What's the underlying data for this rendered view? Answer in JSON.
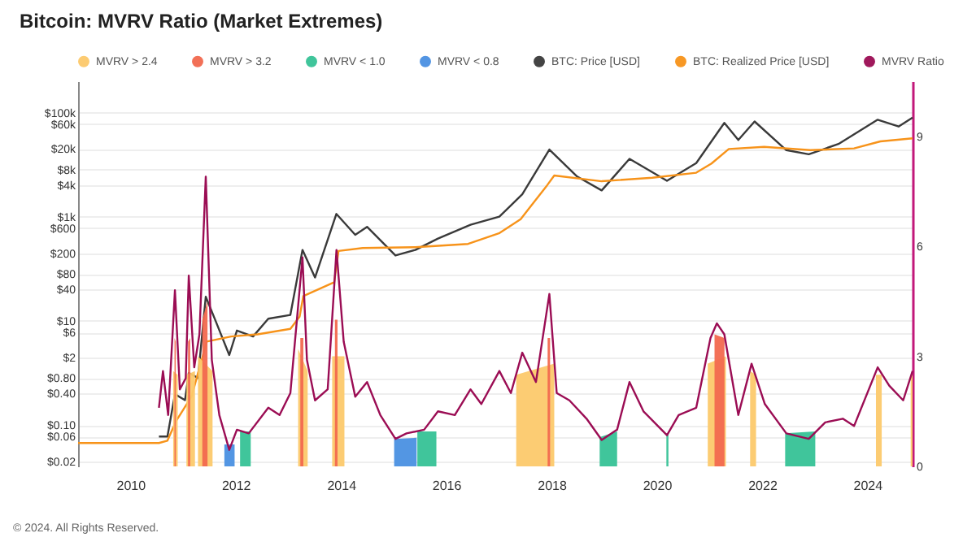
{
  "chart_data": {
    "type": "line",
    "title": "Bitcoin: MVRV Ratio (Market Extremes)",
    "annotations": [
      "© 2024. All Rights Reserved."
    ],
    "xlim": [
      "2009-01-03",
      "2024-11-10"
    ],
    "xticks": [
      "2010",
      "2012",
      "2014",
      "2016",
      "2018",
      "2020",
      "2022",
      "2024"
    ],
    "ylim": [
      0.016,
      400000
    ],
    "log": "y",
    "yticks": [
      {
        "value": 0.02,
        "label": "$0.02"
      },
      {
        "value": 0.06,
        "label": "$0.06"
      },
      {
        "value": 0.1,
        "label": "$0.10"
      },
      {
        "value": 0.4,
        "label": "$0.40"
      },
      {
        "value": 0.8,
        "label": "$0.80"
      },
      {
        "value": 2,
        "label": "$2"
      },
      {
        "value": 6,
        "label": "$6"
      },
      {
        "value": 10,
        "label": "$10"
      },
      {
        "value": 40,
        "label": "$40"
      },
      {
        "value": 80,
        "label": "$80"
      },
      {
        "value": 200,
        "label": "$200"
      },
      {
        "value": 600,
        "label": "$600"
      },
      {
        "value": 1000,
        "label": "$1k"
      },
      {
        "value": 4000,
        "label": "$4k"
      },
      {
        "value": 8000,
        "label": "$8k"
      },
      {
        "value": 20000,
        "label": "$20k"
      },
      {
        "value": 60000,
        "label": "$60k"
      },
      {
        "value": 100000,
        "label": "$100k"
      }
    ],
    "y2lim": [
      0,
      10.5
    ],
    "y2ticks": [
      0,
      3,
      6,
      9
    ],
    "grid": "y",
    "legend": "top left",
    "series": [
      {
        "name": "MVRV > 2.4",
        "type": "area",
        "axis": "y2",
        "color": "#fcc96b",
        "x": [
          "2010-10-25",
          "2010-11-25",
          "2010-12-01",
          "2011-01-25",
          "2011-03-25",
          "2011-04-01",
          "2011-04-15",
          "2011-07-25",
          "2011-08-01",
          "2013-03-10",
          "2013-05-15",
          "2013-06-01",
          "2013-11-01",
          "2014-01-25",
          "2014-02-10",
          "2017-05-01",
          "2018-01-20",
          "2018-03-01",
          "2020-12-20",
          "2021-04-25",
          "2021-06-01",
          "2021-10-10",
          "2021-11-20",
          "2021-12-10",
          "2024-03-01",
          "2024-04-10",
          "2024-07-01",
          "2024-10-28",
          "2024-11-10"
        ],
        "values": [
          2.6,
          2.5,
          null,
          2.5,
          2.6,
          null,
          3.0,
          2.6,
          null,
          3.2,
          2.6,
          null,
          3.0,
          3.0,
          null,
          2.5,
          2.8,
          null,
          2.8,
          3.0,
          null,
          2.6,
          2.5,
          null,
          2.5,
          2.5,
          null,
          2.5,
          2.6
        ]
      },
      {
        "name": "MVRV > 3.2",
        "type": "area",
        "axis": "y2",
        "color": "#f2694f",
        "x": [
          "2010-11-03",
          "2010-11-12",
          "2010-12-01",
          "2011-02-05",
          "2011-02-20",
          "2011-03-01",
          "2011-05-15",
          "2011-06-20",
          "2011-07-01",
          "2013-03-25",
          "2013-04-15",
          "2013-05-01",
          "2013-11-20",
          "2013-12-08",
          "2014-01-01",
          "2017-12-05",
          "2017-12-22",
          "2018-01-10",
          "2021-02-05",
          "2021-04-15"
        ],
        "values": [
          3.5,
          3.4,
          null,
          3.4,
          3.5,
          null,
          4.0,
          4.5,
          null,
          3.5,
          3.5,
          null,
          4.0,
          4.0,
          null,
          3.5,
          3.5,
          null,
          3.6,
          3.5
        ]
      },
      {
        "name": "MVRV < 1.0",
        "type": "area",
        "axis": "y2",
        "color": "#36c296",
        "x": [
          "2012-02-01",
          "2012-04-15",
          "2012-06-01",
          "2015-06-15",
          "2015-10-25",
          "2016-01-01",
          "2018-12-01",
          "2019-04-01",
          "2019-06-01",
          "2020-03-08",
          "2020-03-22",
          "2020-06-01",
          "2022-06-10",
          "2023-01-05"
        ],
        "values": [
          0.95,
          0.95,
          null,
          0.95,
          0.95,
          null,
          0.8,
          0.95,
          null,
          0.9,
          0.9,
          null,
          0.9,
          0.95
        ]
      },
      {
        "name": "MVRV < 0.8",
        "type": "area",
        "axis": "y2",
        "color": "#4a90e2",
        "x": [
          "2011-10-15",
          "2011-12-25",
          "2012-01-15",
          "2015-01-05",
          "2015-06-10"
        ],
        "values": [
          0.6,
          0.6,
          null,
          0.75,
          0.78
        ]
      },
      {
        "name": "BTC: Price [USD]",
        "color": "#3a3a3a",
        "x": [
          "2010-07-18",
          "2010-09-15",
          "2010-11-06",
          "2011-01-15",
          "2011-02-10",
          "2011-04-15",
          "2011-06-08",
          "2011-08-15",
          "2011-11-18",
          "2012-01-10",
          "2012-05-01",
          "2012-08-15",
          "2013-01-15",
          "2013-04-09",
          "2013-07-05",
          "2013-11-30",
          "2014-04-10",
          "2014-07-01",
          "2015-01-14",
          "2015-06-01",
          "2015-11-05",
          "2016-06-18",
          "2017-01-04",
          "2017-06-12",
          "2017-12-17",
          "2018-06-28",
          "2018-12-15",
          "2019-06-26",
          "2020-03-12",
          "2020-10-01",
          "2021-04-14",
          "2021-07-20",
          "2021-11-10",
          "2022-06-18",
          "2022-11-21",
          "2023-06-15",
          "2024-03-13",
          "2024-08-05",
          "2024-11-10"
        ],
        "values": [
          0.06,
          0.06,
          0.39,
          0.3,
          1.0,
          0.8,
          29,
          10,
          2.2,
          6.5,
          5,
          11,
          13,
          230,
          68,
          1130,
          450,
          640,
          180,
          230,
          380,
          700,
          1000,
          2700,
          19500,
          5900,
          3200,
          12900,
          4900,
          10700,
          63500,
          29800,
          67500,
          19000,
          15800,
          25000,
          73000,
          54000,
          80000
        ]
      },
      {
        "name": "BTC: Realized Price [USD]",
        "color": "#f7931a",
        "x": [
          "2009-01-03",
          "2010-07-18",
          "2010-09-15",
          "2010-11-15",
          "2011-03-01",
          "2011-06-15",
          "2011-12-01",
          "2012-06-01",
          "2013-01-15",
          "2013-03-20",
          "2013-04-15",
          "2013-11-15",
          "2013-12-15",
          "2014-06-01",
          "2015-06-01",
          "2016-06-01",
          "2017-01-01",
          "2017-06-01",
          "2017-12-01",
          "2018-01-20",
          "2018-12-15",
          "2019-12-01",
          "2020-10-01",
          "2021-01-15",
          "2021-05-15",
          "2022-01-15",
          "2022-12-01",
          "2023-10-01",
          "2024-04-01",
          "2024-11-10"
        ],
        "values": [
          0.045,
          0.045,
          0.05,
          0.12,
          0.35,
          4,
          5,
          5.5,
          7,
          12,
          30,
          55,
          220,
          250,
          260,
          300,
          480,
          900,
          4000,
          6200,
          4800,
          5600,
          7000,
          10500,
          20000,
          22000,
          19000,
          20500,
          28000,
          32000
        ]
      },
      {
        "name": "MVRV Ratio",
        "axis": "y2",
        "color": "#9b0d54",
        "x": [
          "2010-07-18",
          "2010-08-15",
          "2010-09-20",
          "2010-11-06",
          "2010-12-10",
          "2011-01-20",
          "2011-02-10",
          "2011-03-20",
          "2011-04-25",
          "2011-06-08",
          "2011-07-20",
          "2011-09-10",
          "2011-11-18",
          "2012-01-10",
          "2012-04-01",
          "2012-08-15",
          "2012-11-01",
          "2013-01-15",
          "2013-04-09",
          "2013-05-10",
          "2013-07-05",
          "2013-10-01",
          "2013-12-01",
          "2014-01-20",
          "2014-04-10",
          "2014-07-01",
          "2014-10-01",
          "2015-01-14",
          "2015-04-01",
          "2015-08-01",
          "2015-11-05",
          "2016-03-01",
          "2016-06-18",
          "2016-09-01",
          "2017-01-04",
          "2017-03-25",
          "2017-06-12",
          "2017-09-15",
          "2017-12-17",
          "2018-02-06",
          "2018-05-05",
          "2018-09-01",
          "2018-12-15",
          "2019-04-01",
          "2019-06-26",
          "2019-10-01",
          "2020-03-12",
          "2020-06-01",
          "2020-10-01",
          "2021-01-08",
          "2021-02-21",
          "2021-04-14",
          "2021-07-20",
          "2021-10-20",
          "2022-01-20",
          "2022-06-18",
          "2022-11-21",
          "2023-03-15",
          "2023-07-15",
          "2023-10-01",
          "2024-03-13",
          "2024-06-01",
          "2024-09-06",
          "2024-11-10"
        ],
        "values": [
          1.6,
          2.6,
          1.4,
          4.8,
          2.1,
          2.4,
          5.2,
          2.7,
          3.6,
          7.9,
          2.9,
          1.4,
          0.45,
          1.0,
          0.9,
          1.6,
          1.4,
          2.0,
          5.7,
          2.9,
          1.8,
          2.1,
          5.9,
          3.4,
          1.9,
          2.3,
          1.4,
          0.75,
          0.9,
          1.0,
          1.5,
          1.4,
          2.1,
          1.7,
          2.6,
          2.0,
          3.1,
          2.3,
          4.7,
          2.0,
          1.8,
          1.3,
          0.72,
          1.0,
          2.3,
          1.5,
          0.85,
          1.4,
          1.6,
          3.5,
          3.9,
          3.6,
          1.4,
          2.8,
          1.7,
          0.9,
          0.75,
          1.2,
          1.3,
          1.1,
          2.7,
          2.2,
          1.8,
          2.6
        ]
      }
    ]
  }
}
